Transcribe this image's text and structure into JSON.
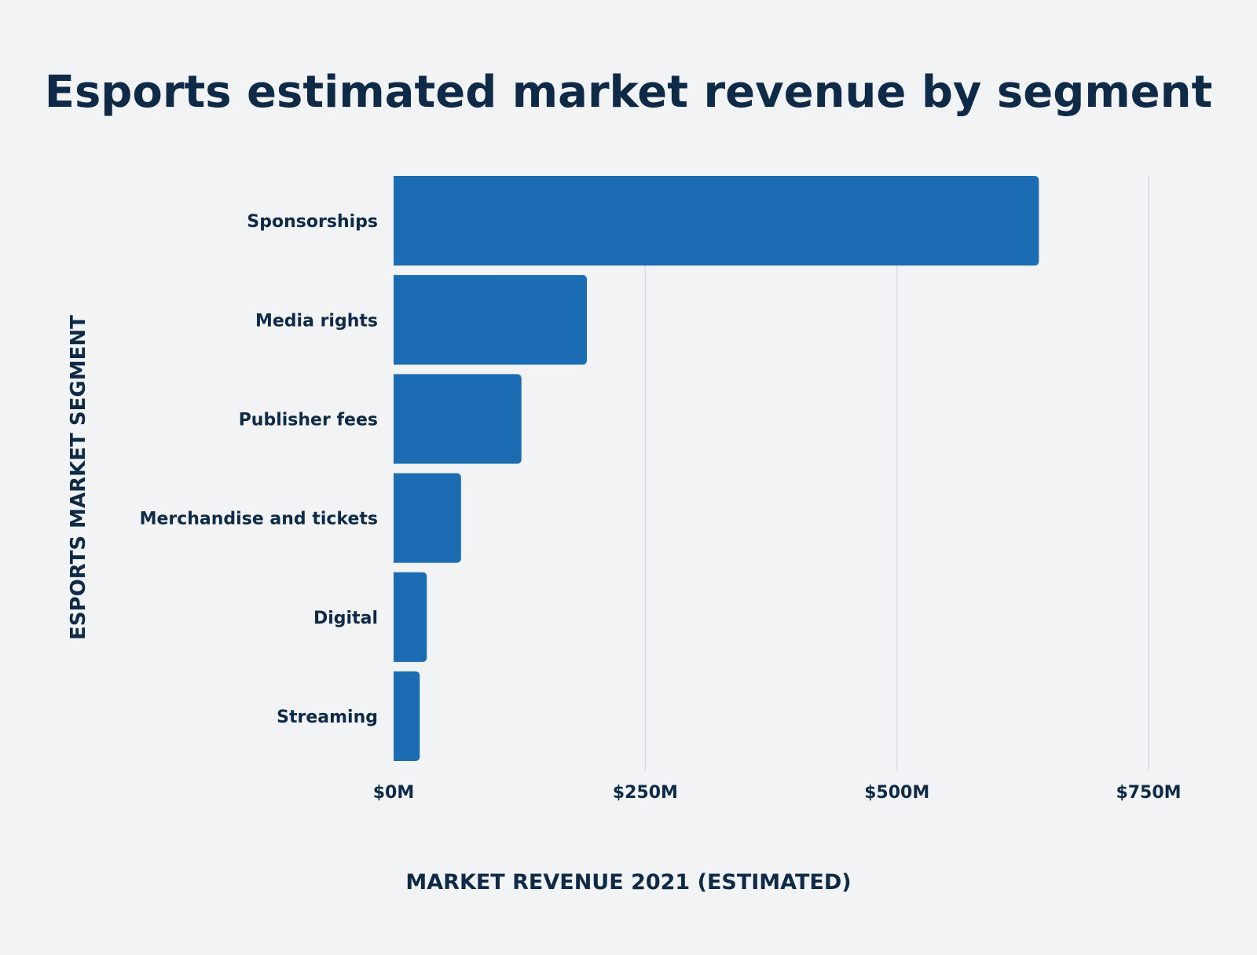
{
  "chart_data": {
    "type": "bar",
    "orientation": "horizontal",
    "title": "Esports estimated market revenue by segment",
    "xlabel": "MARKET REVENUE 2021 (ESTIMATED)",
    "ylabel": "ESPORTS MARKET SEGMENT",
    "categories": [
      "Sponsorships",
      "Media rights",
      "Publisher fees",
      "Merchandise and tickets",
      "Digital",
      "Streaming"
    ],
    "values": [
      641,
      192,
      127,
      67,
      33,
      26
    ],
    "unit": "$M",
    "xlim": [
      0,
      750
    ],
    "xticks": [
      0,
      250,
      500,
      750
    ],
    "xtick_labels": [
      "$0M",
      "$250M",
      "$500M",
      "$750M"
    ],
    "grid": true,
    "legend": "none",
    "colors": {
      "bar": "#1b6cb3",
      "text": "#0e2a47",
      "grid": "#d9dbde",
      "background": "#f2f3f5"
    }
  }
}
